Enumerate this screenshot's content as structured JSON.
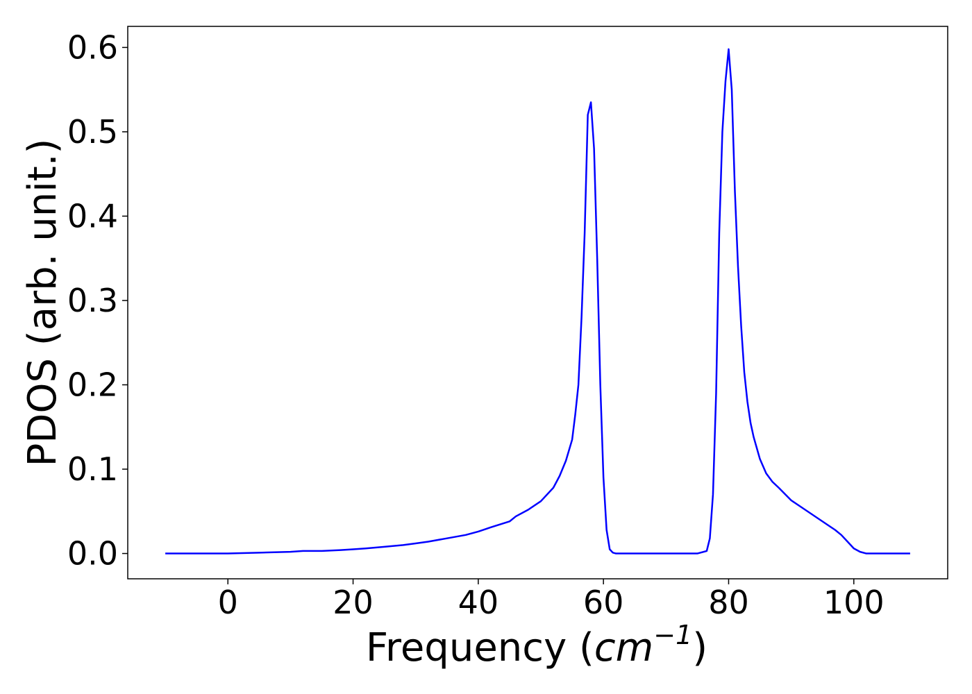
{
  "chart_data": {
    "type": "line",
    "title": "",
    "xlabel": {
      "prefix": "Frequency (",
      "unit_base": "cm",
      "unit_exponent": "−1",
      "suffix": ")"
    },
    "ylabel": "PDOS (arb. unit.)",
    "xlim": [
      -16,
      115
    ],
    "ylim": [
      -0.03,
      0.625
    ],
    "xticks": [
      0,
      20,
      40,
      60,
      80,
      100
    ],
    "xtick_labels": [
      "0",
      "20",
      "40",
      "60",
      "80",
      "100"
    ],
    "yticks": [
      0.0,
      0.1,
      0.2,
      0.3,
      0.4,
      0.5,
      0.6
    ],
    "ytick_labels": [
      "0.0",
      "0.1",
      "0.2",
      "0.3",
      "0.4",
      "0.5",
      "0.6"
    ],
    "grid": false,
    "legend": false,
    "colors": {
      "line": "#0000ff",
      "axes": "#000000",
      "background": "#ffffff"
    },
    "series": [
      {
        "x": [
          -10,
          0,
          5,
          10,
          12,
          15,
          18,
          20,
          22,
          25,
          28,
          30,
          32,
          35,
          38,
          40,
          42,
          45,
          46,
          48,
          50,
          52,
          53,
          54,
          55,
          55.5,
          56,
          56.5,
          57,
          57.5,
          58,
          58.5,
          59,
          59.5,
          60,
          60.5,
          61,
          61.5,
          62,
          65,
          70,
          75,
          76.5,
          77,
          77.5,
          78,
          78.5,
          79,
          79.5,
          80,
          80.5,
          81,
          81.5,
          82,
          82.5,
          83,
          83.5,
          84,
          84.5,
          85,
          86,
          87,
          88,
          90,
          92,
          95,
          97,
          98,
          99,
          100,
          101,
          102,
          105,
          109
        ],
        "y": [
          0.0,
          0.0,
          0.001,
          0.002,
          0.003,
          0.003,
          0.004,
          0.005,
          0.006,
          0.008,
          0.01,
          0.012,
          0.014,
          0.018,
          0.022,
          0.026,
          0.031,
          0.038,
          0.044,
          0.052,
          0.062,
          0.078,
          0.092,
          0.11,
          0.135,
          0.165,
          0.2,
          0.28,
          0.38,
          0.52,
          0.535,
          0.48,
          0.35,
          0.2,
          0.09,
          0.028,
          0.005,
          0.001,
          0.0,
          0.0,
          0.0,
          0.0,
          0.003,
          0.018,
          0.07,
          0.19,
          0.38,
          0.5,
          0.56,
          0.598,
          0.55,
          0.43,
          0.34,
          0.27,
          0.215,
          0.18,
          0.155,
          0.138,
          0.125,
          0.112,
          0.095,
          0.085,
          0.078,
          0.063,
          0.053,
          0.038,
          0.028,
          0.022,
          0.014,
          0.006,
          0.002,
          0.0,
          0.0,
          0.0
        ]
      }
    ]
  }
}
